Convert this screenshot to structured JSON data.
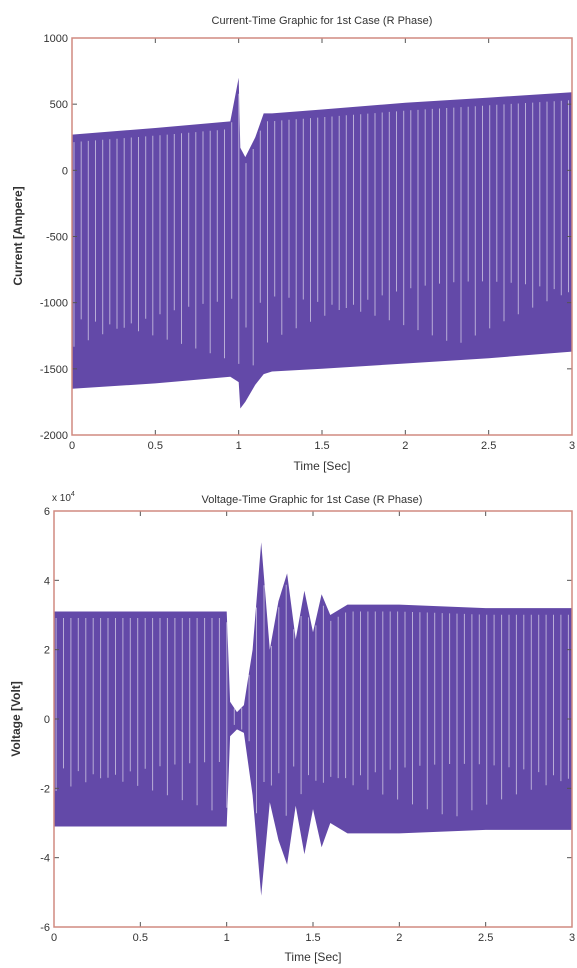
{
  "chart_data": [
    {
      "type": "line",
      "title": "Current-Time Graphic for 1st Case (R Phase)",
      "xlabel": "Time [Sec]",
      "ylabel": "Current [Ampere]",
      "xlim": [
        0,
        3
      ],
      "ylim": [
        -2000,
        1000
      ],
      "xticks": [
        0,
        0.5,
        1,
        1.5,
        2,
        2.5,
        3
      ],
      "xtick_labels": [
        "0",
        "0.5",
        "1",
        "1.5",
        "2",
        "2.5",
        "3"
      ],
      "yticks": [
        -2000,
        -1500,
        -1000,
        -500,
        0,
        500,
        1000
      ],
      "ytick_labels": [
        "-2000",
        "-1500",
        "-1000",
        "-500",
        "0",
        "500",
        "1000"
      ],
      "grid": false,
      "color": "#5b3fa3",
      "series": [
        {
          "description_points": "upper and lower envelope of the oscillating current signal",
          "upper_envelope": {
            "x": [
              0,
              0.5,
              0.95,
              1.0,
              1.01,
              1.04,
              1.1,
              1.15,
              1.2,
              1.5,
              2.0,
              2.5,
              3.0
            ],
            "y": [
              270,
              320,
              370,
              700,
              170,
              100,
              250,
              430,
              430,
              460,
              510,
              550,
              590
            ]
          },
          "lower_envelope": {
            "x": [
              0,
              0.5,
              0.95,
              1.0,
              1.01,
              1.04,
              1.1,
              1.15,
              1.2,
              1.5,
              2.0,
              2.5,
              3.0
            ],
            "y": [
              -1650,
              -1610,
              -1560,
              -1600,
              -1800,
              -1750,
              -1620,
              -1540,
              -1520,
              -1500,
              -1460,
              -1420,
              -1370
            ]
          }
        }
      ]
    },
    {
      "type": "line",
      "title": "Voltage-Time Graphic for 1st Case (R Phase)",
      "xlabel": "Time [Sec]",
      "ylabel": "Voltage [Volt]",
      "y_multiplier": "x 10^4",
      "y_multiplier_base": "x 10",
      "y_multiplier_exp": "4",
      "xlim": [
        0,
        3
      ],
      "ylim": [
        -6,
        6
      ],
      "xticks": [
        0,
        0.5,
        1,
        1.5,
        2,
        2.5,
        3
      ],
      "xtick_labels": [
        "0",
        "0.5",
        "1",
        "1.5",
        "2",
        "2.5",
        "3"
      ],
      "yticks": [
        -6,
        -4,
        -2,
        0,
        2,
        4,
        6
      ],
      "ytick_labels": [
        "-6",
        "-4",
        "-2",
        "0",
        "2",
        "4",
        "6"
      ],
      "grid": false,
      "color": "#5b3fa3",
      "series": [
        {
          "upper_envelope": {
            "x": [
              0,
              1.0,
              1.02,
              1.06,
              1.1,
              1.15,
              1.2,
              1.25,
              1.3,
              1.35,
              1.4,
              1.45,
              1.5,
              1.55,
              1.6,
              1.7,
              2.0,
              2.5,
              3.0
            ],
            "y": [
              3.1,
              3.1,
              0.5,
              0.2,
              0.4,
              2.0,
              5.1,
              2.0,
              3.4,
              4.2,
              2.3,
              3.7,
              2.5,
              3.6,
              3.0,
              3.3,
              3.3,
              3.2,
              3.2
            ]
          },
          "lower_envelope": {
            "x": [
              0,
              1.0,
              1.02,
              1.06,
              1.1,
              1.15,
              1.2,
              1.25,
              1.3,
              1.35,
              1.4,
              1.45,
              1.5,
              1.55,
              1.6,
              1.7,
              2.0,
              2.5,
              3.0
            ],
            "y": [
              -3.1,
              -3.1,
              -0.5,
              -0.3,
              -0.4,
              -2.2,
              -5.1,
              -2.4,
              -3.5,
              -4.2,
              -2.5,
              -3.9,
              -2.6,
              -3.7,
              -3.0,
              -3.3,
              -3.3,
              -3.2,
              -3.2
            ]
          }
        }
      ]
    }
  ]
}
